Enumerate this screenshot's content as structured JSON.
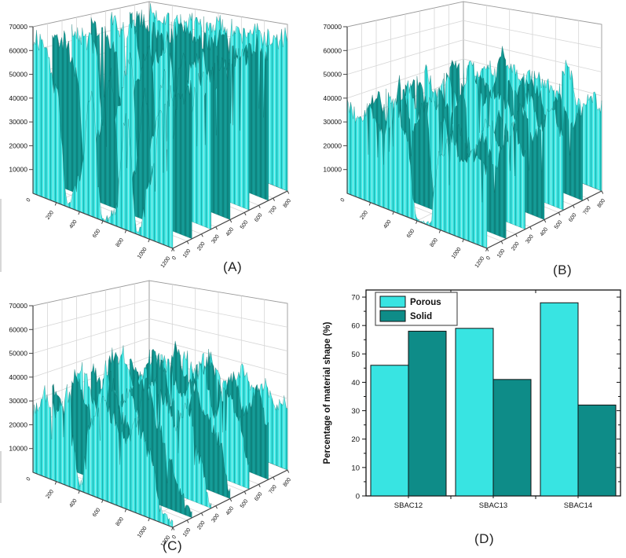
{
  "page": {
    "background": "#ffffff"
  },
  "captions": {
    "a": "(A)",
    "b": "(B)",
    "c": "(C)",
    "d": "(D)"
  },
  "colors": {
    "porous_cyan": "#38e4e2",
    "solid_teal": "#0e8c88",
    "surface_cyan": "#3de4e1",
    "surface_cyan_light": "#93f2ef",
    "surface_cyan_dark": "#16b1ad",
    "surface_teal": "#11948f",
    "surface_teal_dark": "#0b726e",
    "surface_teal_light": "#1aa59f",
    "axis": "#444444",
    "grid": "#d6d6d6",
    "wall_edge": "#9a9a9a",
    "text": "#111111"
  },
  "chart_data": [
    {
      "id": "A",
      "type": "surface3d",
      "caption": "(A)",
      "zlim": [
        0,
        70000
      ],
      "xlim": [
        0,
        1200
      ],
      "ylim": [
        0,
        800
      ],
      "z_ticks": [
        10000,
        20000,
        30000,
        40000,
        50000,
        60000,
        70000
      ],
      "origin_label": "0",
      "x_ticks": [
        200,
        400,
        600,
        800,
        1000,
        1200
      ],
      "y_ticks": [
        0,
        100,
        200,
        300,
        400,
        500,
        600,
        700,
        800
      ],
      "description": "High cyan plateau ~60000-67000 with deep canyons dropping to 0 near x=300, x=600-700 and x=900-1000",
      "jitter": 5000,
      "seed": 7,
      "rows_units": 1000,
      "rows": [
        [
          66,
          64,
          66,
          63,
          65,
          64,
          66,
          65,
          63,
          66,
          64,
          63,
          66
        ],
        [
          64,
          66,
          62,
          58,
          64,
          66,
          60,
          63,
          66,
          60,
          62,
          66,
          64
        ],
        [
          66,
          63,
          65,
          35,
          55,
          63,
          18,
          55,
          60,
          45,
          58,
          64,
          66
        ],
        [
          65,
          66,
          58,
          12,
          48,
          65,
          4,
          42,
          63,
          15,
          52,
          66,
          63
        ],
        [
          66,
          64,
          62,
          6,
          40,
          62,
          2,
          30,
          60,
          4,
          45,
          63,
          66
        ],
        [
          64,
          66,
          55,
          3,
          30,
          58,
          1,
          18,
          55,
          2,
          35,
          60,
          64
        ],
        [
          67,
          65,
          48,
          2,
          15,
          52,
          1,
          6,
          50,
          1,
          25,
          56,
          66
        ]
      ]
    },
    {
      "id": "B",
      "type": "surface3d",
      "caption": "(B)",
      "zlim": [
        0,
        70000
      ],
      "xlim": [
        0,
        1200
      ],
      "ylim": [
        0,
        800
      ],
      "z_ticks": [
        10000,
        20000,
        30000,
        40000,
        50000,
        60000,
        70000
      ],
      "origin_label": "0",
      "x_ticks": [
        200,
        400,
        600,
        800,
        1000,
        1200
      ],
      "y_ticks": [
        0,
        100,
        200,
        300,
        400,
        500,
        600,
        700,
        800
      ],
      "description": "Spiky surface ~15000-50000 with one wide pit at x=500-700 dropping to the floor at the front",
      "jitter": 5000,
      "seed": 13,
      "rows_units": 1000,
      "rows": [
        [
          40,
          34,
          42,
          36,
          44,
          38,
          42,
          40,
          36,
          50,
          34,
          40,
          36
        ],
        [
          34,
          44,
          30,
          42,
          34,
          54,
          38,
          44,
          42,
          32,
          42,
          30,
          40
        ],
        [
          42,
          32,
          40,
          30,
          52,
          36,
          40,
          38,
          30,
          44,
          32,
          42,
          32
        ],
        [
          36,
          42,
          32,
          40,
          30,
          42,
          2,
          3,
          38,
          32,
          44,
          34,
          40
        ],
        [
          40,
          32,
          44,
          30,
          42,
          34,
          1,
          2,
          32,
          42,
          30,
          42,
          32
        ],
        [
          32,
          42,
          30,
          52,
          32,
          44,
          1,
          1,
          40,
          30,
          40,
          30,
          42
        ],
        [
          38,
          34,
          40,
          32,
          50,
          36,
          1,
          1,
          34,
          42,
          32,
          38,
          34
        ]
      ]
    },
    {
      "id": "C",
      "type": "surface3d",
      "caption": "(C)",
      "zlim": [
        0,
        70000
      ],
      "xlim": [
        0,
        1200
      ],
      "ylim": [
        0,
        800
      ],
      "z_ticks": [
        10000,
        20000,
        30000,
        40000,
        50000,
        60000,
        70000
      ],
      "origin_label": "0",
      "x_ticks": [
        200,
        400,
        600,
        800,
        1000,
        1200
      ],
      "y_ticks": [
        0,
        100,
        200,
        300,
        400,
        500,
        600,
        700,
        800
      ],
      "description": "Rough spiky surface ~10000-50000 with notches to the floor and a low flat shelf at the right-front corner",
      "jitter": 6000,
      "seed": 21,
      "rows_units": 1000,
      "rows": [
        [
          28,
          34,
          24,
          38,
          30,
          42,
          32,
          26,
          38,
          30,
          34,
          26,
          30
        ],
        [
          34,
          26,
          40,
          30,
          46,
          32,
          38,
          44,
          30,
          40,
          26,
          36,
          24
        ],
        [
          24,
          42,
          30,
          36,
          26,
          44,
          30,
          36,
          48,
          26,
          40,
          30,
          10
        ],
        [
          36,
          30,
          46,
          24,
          40,
          30,
          50,
          32,
          26,
          44,
          30,
          24,
          4
        ],
        [
          30,
          40,
          26,
          44,
          30,
          36,
          26,
          46,
          40,
          30,
          40,
          20,
          2
        ],
        [
          34,
          26,
          42,
          30,
          10,
          46,
          32,
          26,
          50,
          36,
          22,
          10,
          2
        ],
        [
          26,
          36,
          30,
          40,
          3,
          32,
          44,
          36,
          30,
          38,
          28,
          6,
          3
        ]
      ]
    },
    {
      "id": "D",
      "type": "bar",
      "caption": "(D)",
      "categories": [
        "SBAC12",
        "SBAC13",
        "SBAC14"
      ],
      "series": [
        {
          "name": "Porous",
          "color_key": "porous_cyan",
          "values": [
            46,
            59,
            68
          ]
        },
        {
          "name": "Solid",
          "color_key": "solid_teal",
          "values": [
            58,
            41,
            32
          ]
        }
      ],
      "ylabel": "Percentage of material shape (%)",
      "ylim": [
        0,
        72.5
      ],
      "yticks": [
        0,
        10,
        20,
        30,
        40,
        50,
        60,
        70
      ],
      "ytick_minor_step": 5,
      "grid": false,
      "legend_position": "top-left"
    }
  ]
}
